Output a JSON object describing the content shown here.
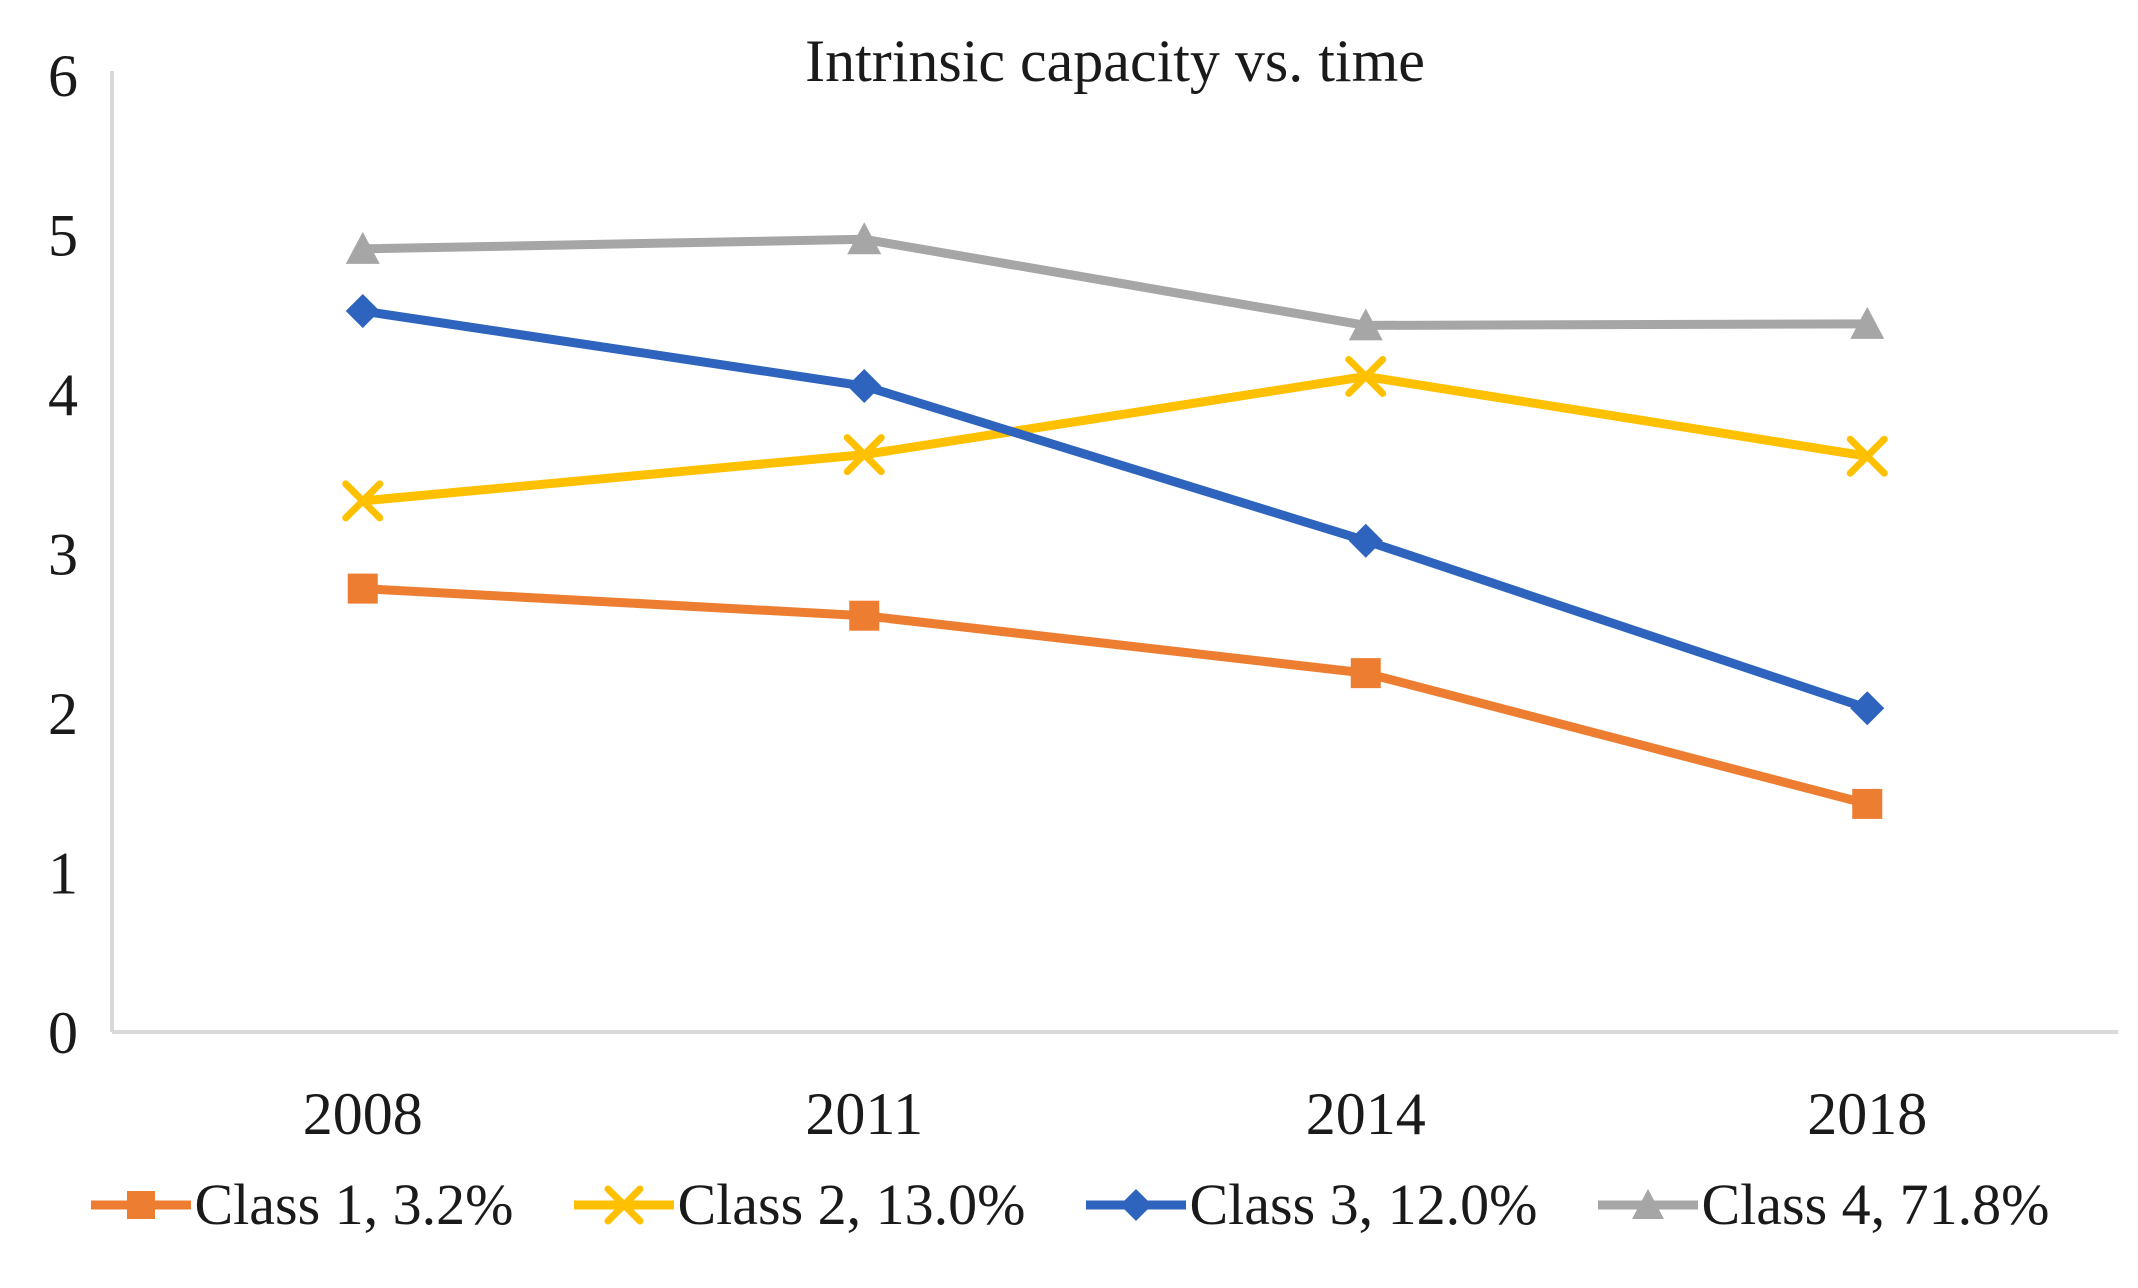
{
  "chart_data": {
    "type": "line",
    "title": "Intrinsic capacity vs. time",
    "categories": [
      "2008",
      "2011",
      "2014",
      "2018"
    ],
    "series": [
      {
        "name": "Class 1, 3.2%",
        "color": "#ED7D31",
        "marker": "square",
        "values": [
          2.78,
          2.61,
          2.25,
          1.43
        ]
      },
      {
        "name": "Class 2, 13.0%",
        "color": "#FFC000",
        "marker": "x",
        "values": [
          3.33,
          3.62,
          4.11,
          3.61
        ]
      },
      {
        "name": "Class 3, 12.0%",
        "color": "#2E63BE",
        "marker": "diamond",
        "values": [
          4.52,
          4.05,
          3.08,
          2.03
        ]
      },
      {
        "name": "Class 4, 71.8%",
        "color": "#A6A6A6",
        "marker": "triangle",
        "values": [
          4.91,
          4.97,
          4.43,
          4.44
        ]
      }
    ],
    "xlabel": "",
    "ylabel": "",
    "ylim": [
      0,
      6
    ],
    "yticks": [
      0,
      1,
      2,
      3,
      4,
      5,
      6
    ],
    "grid": false,
    "legend_position": "bottom",
    "axis_color": "#D9D9D9",
    "text_color": "#1a1a1a"
  }
}
